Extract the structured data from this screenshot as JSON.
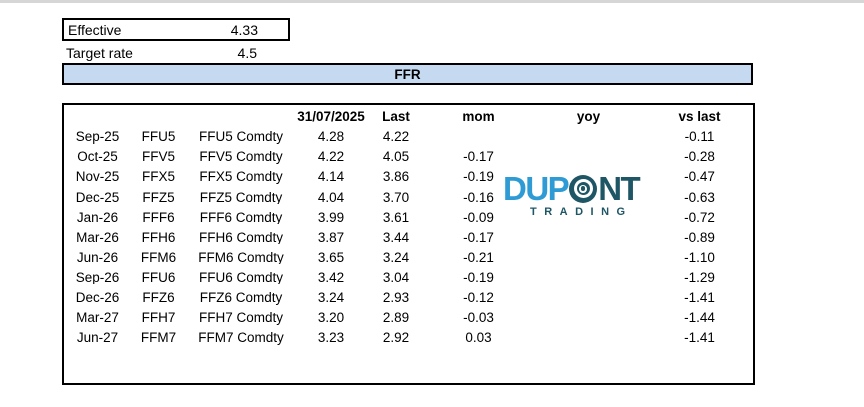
{
  "summary": {
    "effective_label": "Effective",
    "effective_value": "4.33",
    "target_label": "Target rate",
    "target_value": "4.5"
  },
  "banner": {
    "title": "FFR"
  },
  "table": {
    "headers": [
      "",
      "",
      "",
      "31/07/2025",
      "Last",
      "mom",
      "yoy",
      "vs last"
    ],
    "col_keys": [
      "month",
      "ticker",
      "security",
      "close-31-07-2025",
      "last",
      "mom",
      "yoy",
      "vs-last"
    ],
    "rows": [
      [
        "Sep-25",
        "FFU5",
        "FFU5 Comdty",
        "4.28",
        "4.22",
        "",
        "",
        "-0.11"
      ],
      [
        "Oct-25",
        "FFV5",
        "FFV5 Comdty",
        "4.22",
        "4.05",
        "-0.17",
        "",
        "-0.28"
      ],
      [
        "Nov-25",
        "FFX5",
        "FFX5 Comdty",
        "4.14",
        "3.86",
        "-0.19",
        "",
        "-0.47"
      ],
      [
        "Dec-25",
        "FFZ5",
        "FFZ5 Comdty",
        "4.04",
        "3.70",
        "-0.16",
        "",
        "-0.63"
      ],
      [
        "Jan-26",
        "FFF6",
        "FFF6 Comdty",
        "3.99",
        "3.61",
        "-0.09",
        "",
        "-0.72"
      ],
      [
        "Mar-26",
        "FFH6",
        "FFH6 Comdty",
        "3.87",
        "3.44",
        "-0.17",
        "",
        "-0.89"
      ],
      [
        "Jun-26",
        "FFM6",
        "FFM6 Comdty",
        "3.65",
        "3.24",
        "-0.21",
        "",
        "-1.10"
      ],
      [
        "Sep-26",
        "FFU6",
        "FFU6 Comdty",
        "3.42",
        "3.04",
        "-0.19",
        "",
        "-1.29"
      ],
      [
        "Dec-26",
        "FFZ6",
        "FFZ6 Comdty",
        "3.24",
        "2.93",
        "-0.12",
        "",
        "-1.41"
      ],
      [
        "Mar-27",
        "FFH7",
        "FFH7 Comdty",
        "3.20",
        "2.89",
        "-0.03",
        "",
        "-1.44"
      ],
      [
        "Jun-27",
        "FFM7",
        "FFM7 Comdty",
        "3.23",
        "2.92",
        "0.03",
        "",
        "-1.41"
      ]
    ]
  },
  "logo": {
    "word_left": "DUP",
    "word_right": "NT",
    "subtitle": "TRADING",
    "blue": "#2F9BD4",
    "teal": "#1E5666"
  }
}
